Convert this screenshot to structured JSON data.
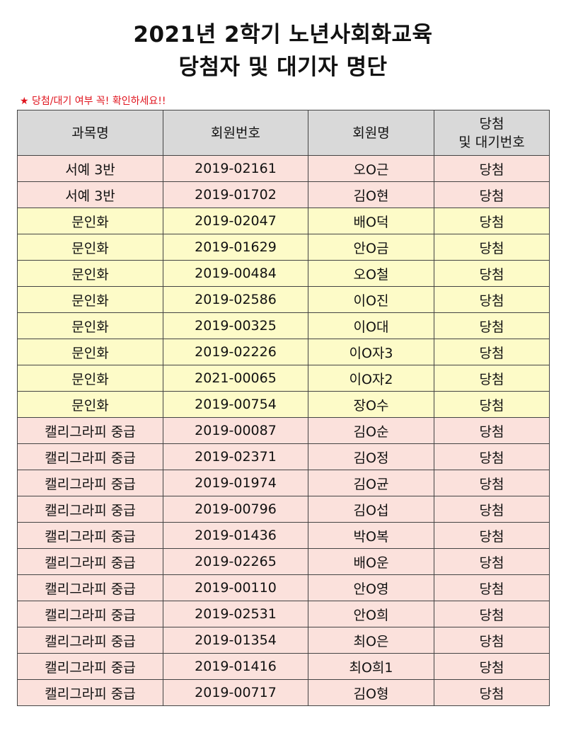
{
  "title": {
    "line1": "2021년 2학기 노년사회화교육",
    "line2": "당첨자 및 대기자 명단"
  },
  "notice": "★ 당첨/대기 여부 꼭! 확인하세요!!",
  "colors": {
    "pink_row": "#fbe1dc",
    "yellow_row": "#fdfbc8",
    "header_bg": "#d9d9d9",
    "notice": "#e0141e"
  },
  "table": {
    "headers": {
      "course": "과목명",
      "member_no": "회원번호",
      "member_name": "회원명",
      "result_line1": "당첨",
      "result_line2": "및 대기번호"
    },
    "rows": [
      {
        "course": "서예 3반",
        "member_no": "2019-02161",
        "name": "오O근",
        "result": "당첨",
        "tint": "pink"
      },
      {
        "course": "서예 3반",
        "member_no": "2019-01702",
        "name": "김O현",
        "result": "당첨",
        "tint": "pink"
      },
      {
        "course": "문인화",
        "member_no": "2019-02047",
        "name": "배O덕",
        "result": "당첨",
        "tint": "yellow"
      },
      {
        "course": "문인화",
        "member_no": "2019-01629",
        "name": "안O금",
        "result": "당첨",
        "tint": "yellow"
      },
      {
        "course": "문인화",
        "member_no": "2019-00484",
        "name": "오O철",
        "result": "당첨",
        "tint": "yellow"
      },
      {
        "course": "문인화",
        "member_no": "2019-02586",
        "name": "이O진",
        "result": "당첨",
        "tint": "yellow"
      },
      {
        "course": "문인화",
        "member_no": "2019-00325",
        "name": "이O대",
        "result": "당첨",
        "tint": "yellow"
      },
      {
        "course": "문인화",
        "member_no": "2019-02226",
        "name": "이O자3",
        "result": "당첨",
        "tint": "yellow"
      },
      {
        "course": "문인화",
        "member_no": "2021-00065",
        "name": "이O자2",
        "result": "당첨",
        "tint": "yellow"
      },
      {
        "course": "문인화",
        "member_no": "2019-00754",
        "name": "장O수",
        "result": "당첨",
        "tint": "yellow"
      },
      {
        "course": "캘리그라피 중급",
        "member_no": "2019-00087",
        "name": "김O순",
        "result": "당첨",
        "tint": "pink"
      },
      {
        "course": "캘리그라피 중급",
        "member_no": "2019-02371",
        "name": "김O정",
        "result": "당첨",
        "tint": "pink"
      },
      {
        "course": "캘리그라피 중급",
        "member_no": "2019-01974",
        "name": "김O균",
        "result": "당첨",
        "tint": "pink"
      },
      {
        "course": "캘리그라피 중급",
        "member_no": "2019-00796",
        "name": "김O섭",
        "result": "당첨",
        "tint": "pink"
      },
      {
        "course": "캘리그라피 중급",
        "member_no": "2019-01436",
        "name": "박O복",
        "result": "당첨",
        "tint": "pink"
      },
      {
        "course": "캘리그라피 중급",
        "member_no": "2019-02265",
        "name": "배O운",
        "result": "당첨",
        "tint": "pink"
      },
      {
        "course": "캘리그라피 중급",
        "member_no": "2019-00110",
        "name": "안O영",
        "result": "당첨",
        "tint": "pink"
      },
      {
        "course": "캘리그라피 중급",
        "member_no": "2019-02531",
        "name": "안O희",
        "result": "당첨",
        "tint": "pink"
      },
      {
        "course": "캘리그라피 중급",
        "member_no": "2019-01354",
        "name": "최O은",
        "result": "당첨",
        "tint": "pink"
      },
      {
        "course": "캘리그라피 중급",
        "member_no": "2019-01416",
        "name": "최O희1",
        "result": "당첨",
        "tint": "pink"
      },
      {
        "course": "캘리그라피 중급",
        "member_no": "2019-00717",
        "name": "김O형",
        "result": "당첨",
        "tint": "pink"
      }
    ]
  }
}
